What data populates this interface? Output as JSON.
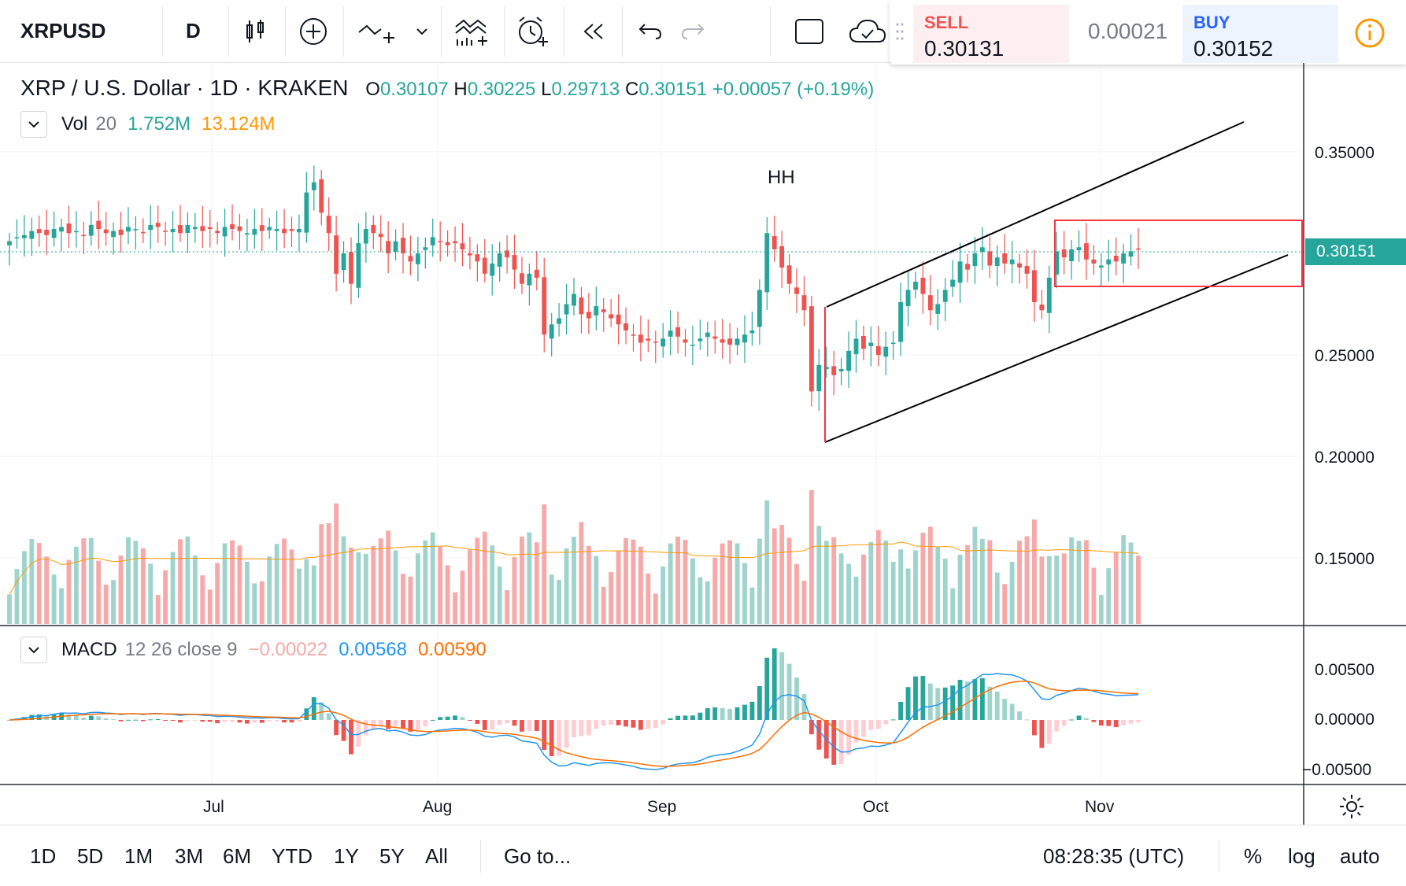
{
  "toolbar": {
    "symbol": "XRPUSD",
    "interval": "D"
  },
  "trade": {
    "sell_label": "SELL",
    "sell_price": "0.30131",
    "spread": "0.00021",
    "buy_label": "BUY",
    "buy_price": "0.30152",
    "sell_color": "#ef5350",
    "buy_color": "#2962ff"
  },
  "legend": {
    "title": "XRP / U.S. Dollar · 1D · KRAKEN",
    "open_label": "O",
    "open": "0.30107",
    "high_label": "H",
    "high": "0.30225",
    "low_label": "L",
    "low": "0.29713",
    "close_label": "C",
    "close": "0.30151",
    "change": "+0.00057 (+0.19%)"
  },
  "volume_indicator": {
    "name": "Vol",
    "param": "20",
    "value": "1.752M",
    "ma_value": "13.124M"
  },
  "macd_indicator": {
    "name": "MACD",
    "params": "12 26 close 9",
    "histogram": "−0.00022",
    "macd": "0.00568",
    "signal": "0.00590"
  },
  "annotation_hh": "HH",
  "price_axis": {
    "labels": [
      "0.35000",
      "0.30000",
      "0.25000",
      "0.20000",
      "0.15000"
    ],
    "last_price": "0.30151"
  },
  "macd_axis": {
    "labels": [
      "0.00500",
      "0.00000",
      "−0.00500"
    ]
  },
  "time_axis": {
    "labels": [
      "Jul",
      "Aug",
      "Sep",
      "Oct",
      "Nov"
    ]
  },
  "bottom": {
    "ranges": [
      "1D",
      "5D",
      "1M",
      "3M",
      "6M",
      "YTD",
      "1Y",
      "5Y",
      "All"
    ],
    "goto": "Go to...",
    "clock": "08:28:35 (UTC)",
    "percent": "%",
    "log": "log",
    "auto": "auto"
  },
  "colors": {
    "up": "#26a69a",
    "down": "#ef5350",
    "vol_up": "#9fd4cd",
    "vol_down": "#f6a9a8",
    "macd_line": "#2196f3",
    "signal_line": "#ff6d00"
  },
  "chart_data": {
    "type": "candlestick",
    "symbol": "XRP / U.S. Dollar",
    "exchange": "KRAKEN",
    "interval": "1D",
    "y_range": [
      0.12,
      0.37
    ],
    "x_ticks": [
      "Jul",
      "Aug",
      "Sep",
      "Oct",
      "Nov"
    ],
    "close": [
      0.306,
      0.308,
      0.309,
      0.311,
      0.31,
      0.309,
      0.312,
      0.313,
      0.31,
      0.311,
      0.309,
      0.314,
      0.312,
      0.31,
      0.311,
      0.309,
      0.313,
      0.312,
      0.31,
      0.314,
      0.313,
      0.311,
      0.312,
      0.31,
      0.314,
      0.313,
      0.311,
      0.312,
      0.31,
      0.313,
      0.312,
      0.311,
      0.31,
      0.312,
      0.311,
      0.313,
      0.312,
      0.31,
      0.311,
      0.312,
      0.33,
      0.335,
      0.32,
      0.31,
      0.29,
      0.3,
      0.285,
      0.305,
      0.312,
      0.31,
      0.308,
      0.3,
      0.306,
      0.3,
      0.296,
      0.3,
      0.303,
      0.308,
      0.306,
      0.304,
      0.305,
      0.302,
      0.299,
      0.296,
      0.29,
      0.295,
      0.3,
      0.298,
      0.292,
      0.285,
      0.29,
      0.288,
      0.26,
      0.265,
      0.268,
      0.275,
      0.28,
      0.27,
      0.268,
      0.274,
      0.271,
      0.268,
      0.265,
      0.262,
      0.26,
      0.256,
      0.257,
      0.256,
      0.258,
      0.262,
      0.259,
      0.256,
      0.255,
      0.258,
      0.261,
      0.258,
      0.256,
      0.255,
      0.258,
      0.26,
      0.262,
      0.282,
      0.31,
      0.302,
      0.293,
      0.285,
      0.28,
      0.272,
      0.232,
      0.245,
      0.244,
      0.24,
      0.243,
      0.252,
      0.258,
      0.253,
      0.256,
      0.25,
      0.254,
      0.256,
      0.276,
      0.282,
      0.286,
      0.28,
      0.272,
      0.275,
      0.282,
      0.287,
      0.296,
      0.292,
      0.3,
      0.303,
      0.294,
      0.298,
      0.295,
      0.297,
      0.293,
      0.29,
      0.276,
      0.272,
      0.288,
      0.301,
      0.298,
      0.302,
      0.303,
      0.297,
      0.295,
      0.294,
      0.297,
      0.296,
      0.3,
      0.301,
      0.302
    ]
  }
}
